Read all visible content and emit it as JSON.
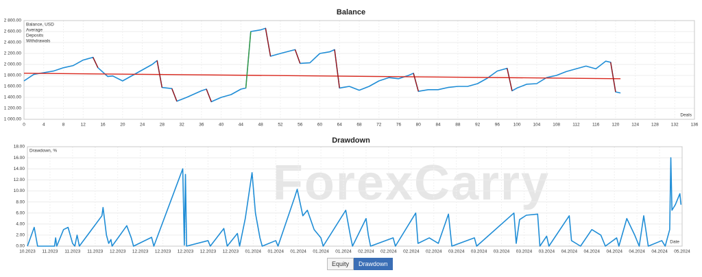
{
  "watermark": "ForexCarry",
  "tabs": [
    "Equity",
    "Drawdown"
  ],
  "chart_data": [
    {
      "type": "line",
      "title": "Balance",
      "x_label": "Deals",
      "xlim": [
        0,
        136
      ],
      "xticks": [
        0,
        4,
        8,
        12,
        16,
        20,
        24,
        28,
        32,
        36,
        40,
        44,
        48,
        52,
        56,
        60,
        64,
        68,
        72,
        76,
        80,
        84,
        88,
        92,
        96,
        100,
        104,
        108,
        112,
        116,
        120,
        124,
        128,
        132,
        136
      ],
      "ylim": [
        1000,
        2800
      ],
      "yticks": [
        {
          "value": 1000,
          "label": "1 000.00"
        },
        {
          "value": 1200,
          "label": "1 200.00"
        },
        {
          "value": 1400,
          "label": "1 400.00"
        },
        {
          "value": 1600,
          "label": "1 600.00"
        },
        {
          "value": 1800,
          "label": "1 800.00"
        },
        {
          "value": 2000,
          "label": "2 000.00"
        },
        {
          "value": 2200,
          "label": "2 200.00"
        },
        {
          "value": 2400,
          "label": "2 400.00"
        },
        {
          "value": 2600,
          "label": "2 600.00"
        },
        {
          "value": 2800,
          "label": "2 800.00"
        }
      ],
      "grid": true,
      "series": [
        {
          "name": "Balance, USD",
          "color": "#1f8dd6",
          "x": [
            0,
            2,
            4,
            6,
            8,
            10,
            12,
            14,
            15,
            17,
            18,
            20,
            22,
            24,
            26,
            27,
            28,
            30,
            31,
            33,
            36,
            37,
            38,
            40,
            42,
            44,
            45,
            46,
            48,
            49,
            50,
            52,
            55,
            56,
            58,
            60,
            62,
            63,
            64,
            66,
            68,
            70,
            72,
            74,
            76,
            78,
            79,
            80,
            82,
            84,
            86,
            88,
            90,
            92,
            94,
            96,
            98,
            99,
            100,
            102,
            104,
            106,
            108,
            110,
            112,
            114,
            116,
            118,
            119,
            120,
            121
          ],
          "values": [
            1700,
            1820,
            1850,
            1880,
            1940,
            1980,
            2080,
            2130,
            1940,
            1780,
            1790,
            1700,
            1800,
            1900,
            2000,
            2070,
            1580,
            1560,
            1330,
            1400,
            1520,
            1550,
            1320,
            1400,
            1450,
            1550,
            1570,
            2600,
            2630,
            2660,
            2150,
            2200,
            2270,
            2020,
            2030,
            2200,
            2230,
            2270,
            1570,
            1600,
            1530,
            1600,
            1700,
            1760,
            1740,
            1800,
            1840,
            1510,
            1540,
            1540,
            1580,
            1600,
            1600,
            1650,
            1750,
            1880,
            1930,
            1520,
            1570,
            1640,
            1650,
            1760,
            1800,
            1870,
            1920,
            1970,
            1920,
            2060,
            2040,
            1500,
            1480
          ]
        },
        {
          "name": "Average",
          "color": "#d9261c",
          "x": [
            0,
            121
          ],
          "values": [
            1840,
            1740
          ]
        },
        {
          "name": "Deposits",
          "color": "#3c9b3c",
          "x": [
            45,
            46
          ],
          "values": [
            1570,
            2600
          ]
        },
        {
          "name": "Withdrawals",
          "color": "#a31515",
          "x": [
            14,
            15,
            15,
            27,
            28,
            28,
            30,
            31,
            31,
            37,
            38,
            38,
            49,
            50,
            50,
            55,
            56,
            56,
            63,
            64,
            64,
            79,
            80,
            80,
            98,
            99,
            99,
            119,
            120
          ],
          "values": [
            2130,
            1940,
            null,
            2070,
            1580,
            null,
            1560,
            1330,
            null,
            1550,
            1320,
            null,
            2660,
            2150,
            null,
            2270,
            2020,
            null,
            2270,
            1570,
            null,
            1840,
            1510,
            null,
            1930,
            1520,
            null,
            2040,
            1500
          ]
        }
      ]
    },
    {
      "type": "line",
      "title": "Drawdown",
      "x_label": "Date",
      "xlim": [
        0,
        29
      ],
      "xticks": [
        {
          "value": 0,
          "label": "10.2023"
        },
        {
          "value": 1,
          "label": "11.2023"
        },
        {
          "value": 2,
          "label": "11.2023"
        },
        {
          "value": 3,
          "label": "11.2023"
        },
        {
          "value": 4,
          "label": "12.2023"
        },
        {
          "value": 5,
          "label": "12.2023"
        },
        {
          "value": 6,
          "label": "12.2023"
        },
        {
          "value": 7,
          "label": "12.2023"
        },
        {
          "value": 8,
          "label": "12.2023"
        },
        {
          "value": 9,
          "label": "12.2023"
        },
        {
          "value": 10,
          "label": "01.2024"
        },
        {
          "value": 11,
          "label": "01.2024"
        },
        {
          "value": 12,
          "label": "01.2024"
        },
        {
          "value": 13,
          "label": "01.2024"
        },
        {
          "value": 14,
          "label": "01.2024"
        },
        {
          "value": 15,
          "label": "02.2024"
        },
        {
          "value": 16,
          "label": "02.2024"
        },
        {
          "value": 17,
          "label": "02.2024"
        },
        {
          "value": 18,
          "label": "02.2024"
        },
        {
          "value": 19,
          "label": "03.2024"
        },
        {
          "value": 20,
          "label": "03.2024"
        },
        {
          "value": 21,
          "label": "03.2024"
        },
        {
          "value": 22,
          "label": "03.2024"
        },
        {
          "value": 23,
          "label": "03.2024"
        },
        {
          "value": 24,
          "label": "04.2024"
        },
        {
          "value": 25,
          "label": "04.2024"
        },
        {
          "value": 26,
          "label": "04.2024"
        },
        {
          "value": 27,
          "label": "04.2024"
        },
        {
          "value": 28,
          "label": "04.2024"
        },
        {
          "value": 29,
          "label": "05.2024"
        }
      ],
      "ylim": [
        0,
        18
      ],
      "yticks": [
        {
          "value": 0,
          "label": "0.00"
        },
        {
          "value": 2,
          "label": "2.00"
        },
        {
          "value": 4,
          "label": "4.00"
        },
        {
          "value": 6,
          "label": "6.00"
        },
        {
          "value": 8,
          "label": "8.00"
        },
        {
          "value": 10,
          "label": "10.00"
        },
        {
          "value": 12,
          "label": "12.00"
        },
        {
          "value": 14,
          "label": "14.00"
        },
        {
          "value": 16,
          "label": "16.00"
        },
        {
          "value": 18,
          "label": "18.00"
        }
      ],
      "grid": true,
      "series": [
        {
          "name": "Drawdown, %",
          "color": "#1f8dd6",
          "x": [
            0,
            0.3,
            0.45,
            1.2,
            1.25,
            1.3,
            1.6,
            1.8,
            2.0,
            2.1,
            2.2,
            2.3,
            3.3,
            3.35,
            3.5,
            3.6,
            3.7,
            3.75,
            4.4,
            4.6,
            4.7,
            5.5,
            5.6,
            6.88,
            6.95,
            7.0,
            7.05,
            8.0,
            8.1,
            8.7,
            8.85,
            9.3,
            9.4,
            9.65,
            9.95,
            10.1,
            10.3,
            10.4,
            11.0,
            11.1,
            11.85,
            11.95,
            12.2,
            12.4,
            12.7,
            13.0,
            13.1,
            14.1,
            14.3,
            14.4,
            15.0,
            15.1,
            15.2,
            16.2,
            16.3,
            17.2,
            17.3,
            17.8,
            18.2,
            18.65,
            18.8,
            19.8,
            19.9,
            21.55,
            21.65,
            21.8,
            22.1,
            22.6,
            22.7,
            23.0,
            23.1,
            24.0,
            24.1,
            24.5,
            25.0,
            25.4,
            25.6,
            26.1,
            26.2,
            26.55,
            26.9,
            27.1,
            27.3,
            27.5,
            28.1,
            28.25,
            28.45,
            28.5,
            28.55,
            28.7,
            28.9,
            28.95
          ],
          "values": [
            0,
            3.4,
            0,
            0,
            1.5,
            0,
            3.0,
            3.4,
            0.5,
            0,
            2.0,
            0,
            5.5,
            7.0,
            2,
            0.5,
            1.2,
            0,
            3.7,
            1.5,
            0,
            1.6,
            0,
            14,
            0.2,
            13,
            0,
            1,
            0,
            3.2,
            0,
            2.3,
            0,
            5,
            13.3,
            6,
            1.5,
            0,
            1,
            0,
            9,
            10.3,
            5.5,
            6.5,
            3,
            1.5,
            0,
            6.5,
            2,
            0,
            5.0,
            2,
            0,
            1.5,
            0,
            6,
            0.5,
            1.5,
            0.5,
            5.8,
            0,
            1.5,
            0,
            6,
            0.5,
            4.8,
            5.6,
            5.8,
            0,
            1.8,
            0,
            5.5,
            1,
            0,
            3,
            2,
            0,
            1.5,
            0,
            5,
            2,
            0,
            5.5,
            0,
            1,
            0,
            3,
            16,
            6.5,
            7.5,
            9.5,
            7.5
          ]
        }
      ]
    }
  ]
}
